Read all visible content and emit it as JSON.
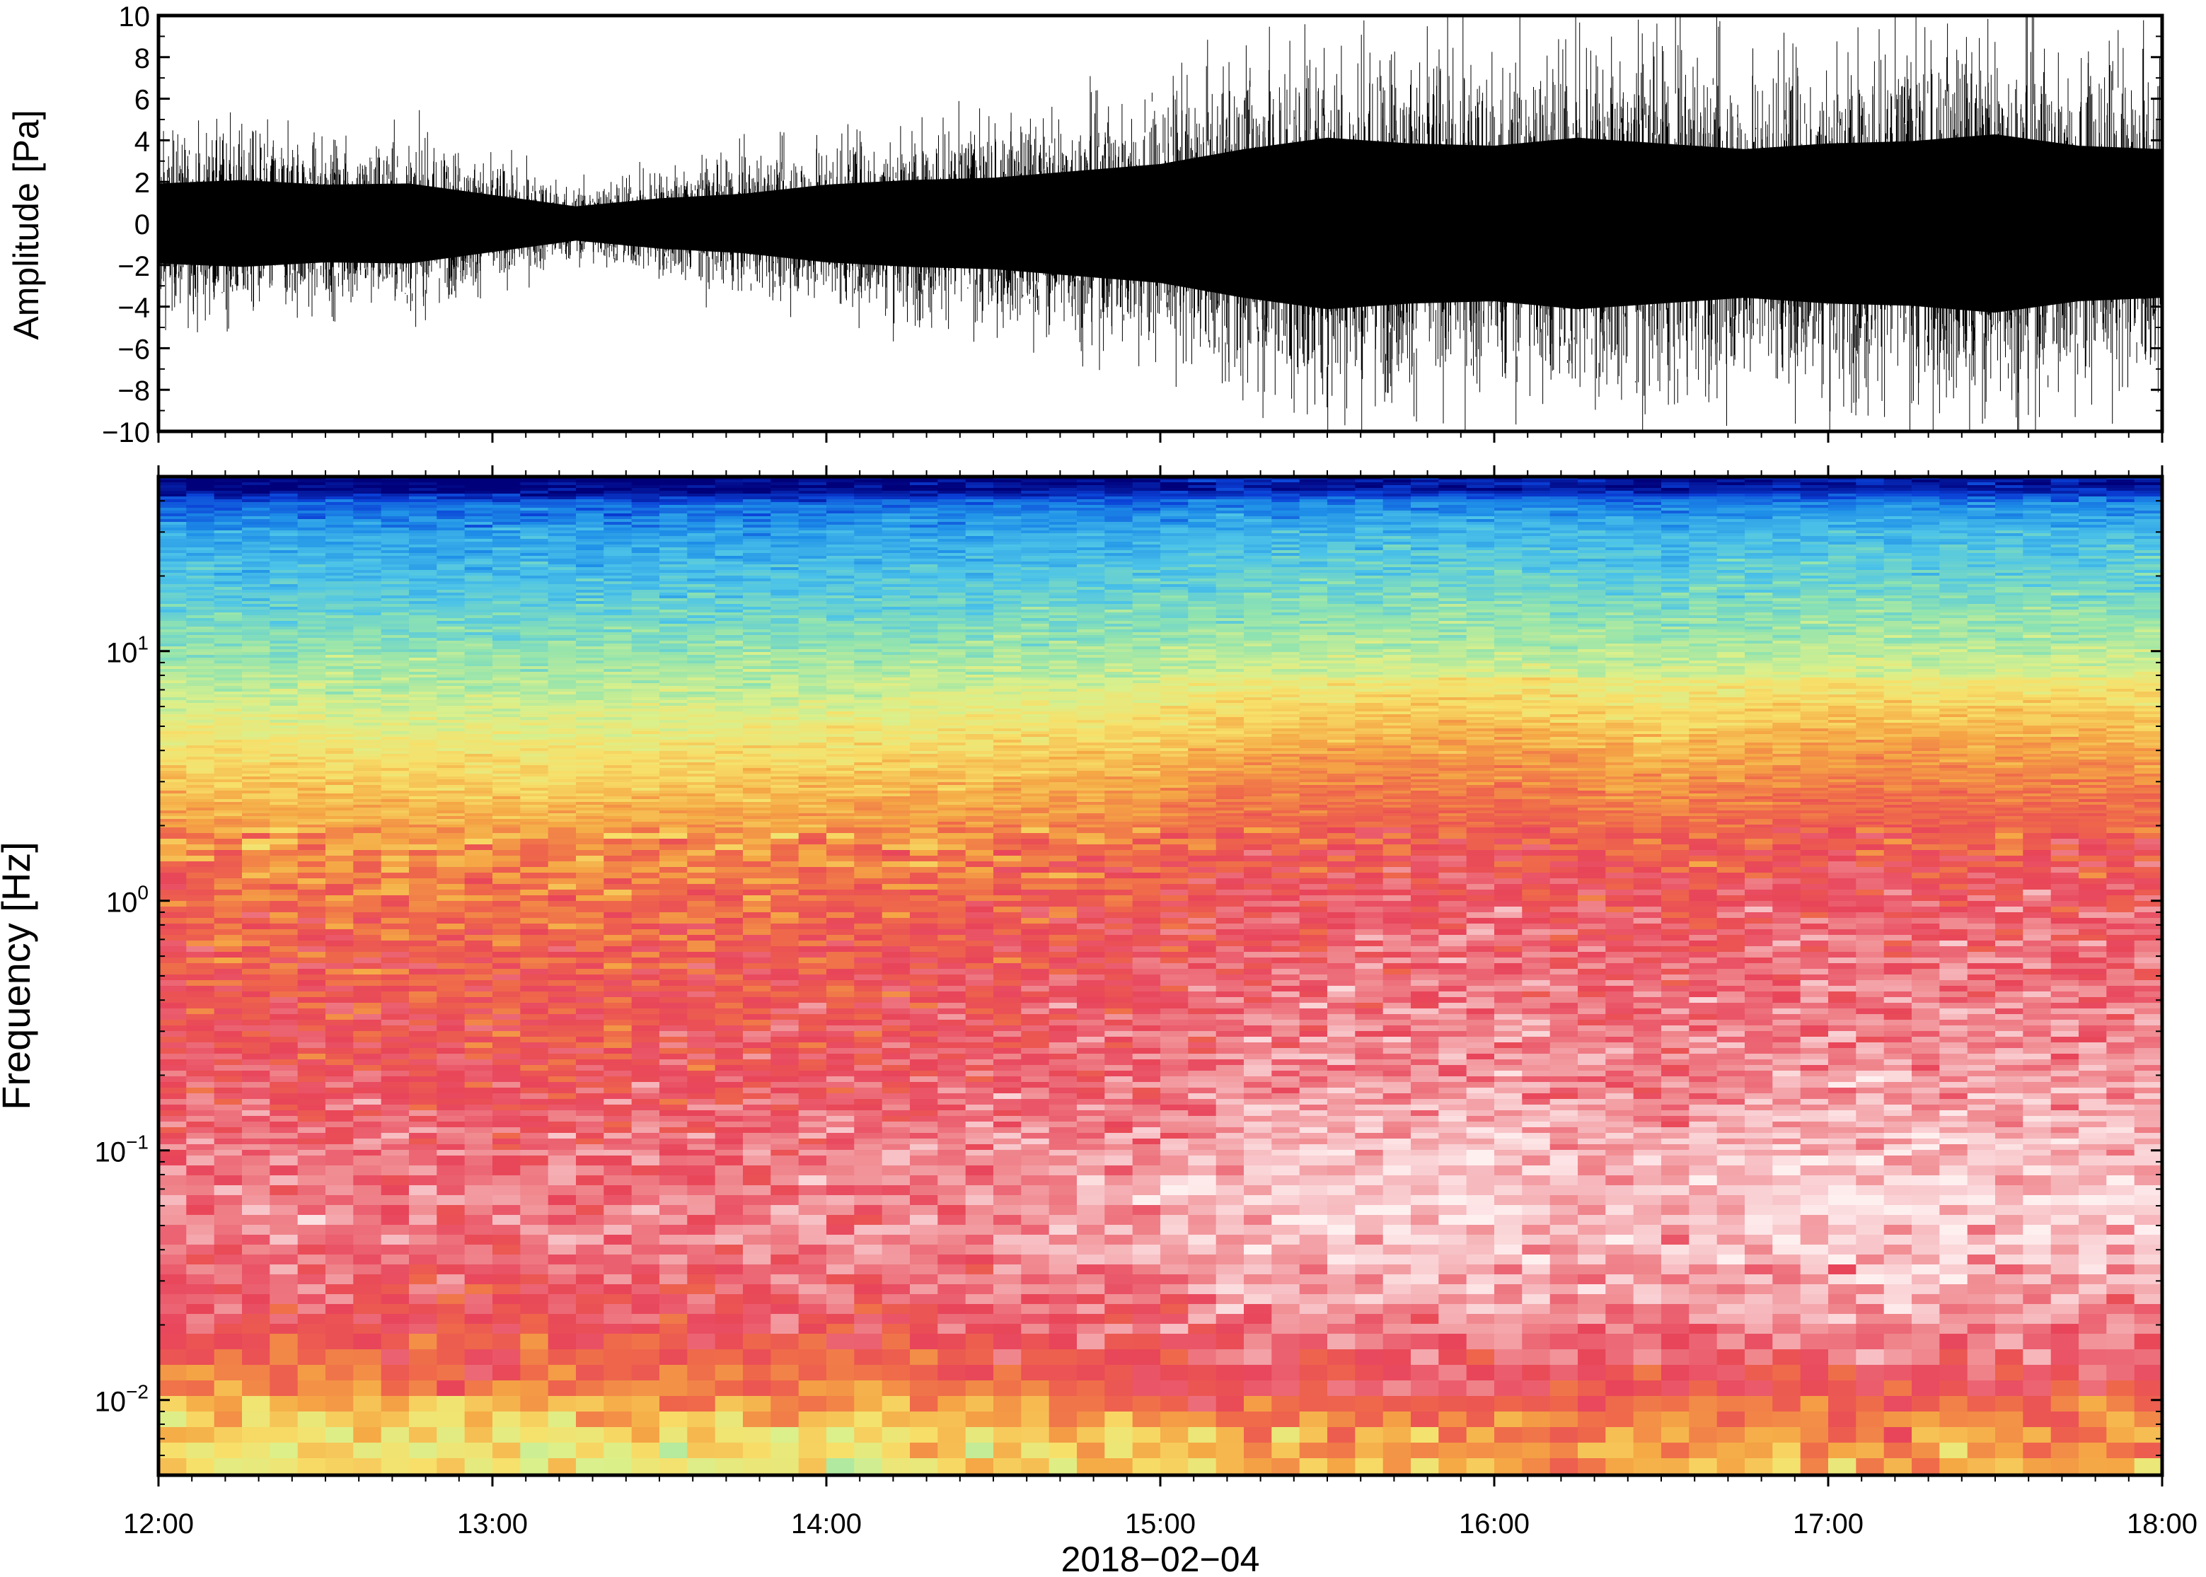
{
  "chart_data": [
    {
      "type": "line",
      "panel": "waveform",
      "ylabel": "Amplitude [Pa]",
      "ylim": [
        -10,
        10
      ],
      "yticks": [
        10,
        8,
        6,
        4,
        2,
        0,
        -2,
        -4,
        -6,
        -8,
        -10
      ],
      "ytick_labels": [
        "10",
        "8",
        "6",
        "4",
        "2",
        "0",
        "−2",
        "−4",
        "−6",
        "−8",
        "−10"
      ],
      "xlim": [
        "12:00",
        "18:00"
      ],
      "grid": false,
      "series": [
        {
          "color": "#000000",
          "x_hours": [
            12.0,
            12.25,
            12.5,
            12.75,
            13.0,
            13.25,
            13.5,
            13.75,
            14.0,
            14.25,
            14.5,
            14.75,
            15.0,
            15.25,
            15.5,
            15.75,
            16.0,
            16.25,
            16.5,
            16.75,
            17.0,
            17.25,
            17.5,
            17.75,
            18.0
          ],
          "envelope_pa": [
            3.5,
            3.8,
            3.4,
            3.5,
            2.5,
            1.5,
            2.2,
            2.6,
            3.4,
            3.8,
            4.0,
            4.6,
            5.2,
            6.5,
            7.5,
            7.0,
            6.8,
            7.5,
            7.0,
            6.5,
            7.0,
            7.2,
            7.8,
            6.8,
            6.5
          ]
        }
      ]
    },
    {
      "type": "heatmap",
      "panel": "spectrogram",
      "ylabel": "Frequency [Hz]",
      "yscale": "log",
      "ylim": [
        0.005,
        50
      ],
      "yticks": [
        0.01,
        0.1,
        1,
        10
      ],
      "ytick_labels": [
        {
          "base": "10",
          "exp": "−2"
        },
        {
          "base": "10",
          "exp": "−1"
        },
        {
          "base": "10",
          "exp": "0"
        },
        {
          "base": "10",
          "exp": "1"
        }
      ],
      "xlim": [
        "12:00",
        "18:00"
      ],
      "xticks": [
        "12:00",
        "13:00",
        "14:00",
        "15:00",
        "16:00",
        "17:00",
        "18:00"
      ],
      "xlabel": "2018−02−04",
      "colormap": [
        "#00007a",
        "#0a3fd6",
        "#1e8fe8",
        "#4cc3e8",
        "#8fe3b0",
        "#d9f08c",
        "#f7e06a",
        "#f5a845",
        "#ef6a4a",
        "#e8445a",
        "#f08a90",
        "#f8c8cc",
        "#fff0f0"
      ],
      "profile": [
        {
          "freq_hz": 45,
          "level": 0.0
        },
        {
          "freq_hz": 40,
          "level": 0.12
        },
        {
          "freq_hz": 30,
          "level": 0.2
        },
        {
          "freq_hz": 20,
          "level": 0.25
        },
        {
          "freq_hz": 12,
          "level": 0.32
        },
        {
          "freq_hz": 7,
          "level": 0.4
        },
        {
          "freq_hz": 4,
          "level": 0.5
        },
        {
          "freq_hz": 2,
          "level": 0.6
        },
        {
          "freq_hz": 1,
          "level": 0.68
        },
        {
          "freq_hz": 0.5,
          "level": 0.72
        },
        {
          "freq_hz": 0.2,
          "level": 0.76
        },
        {
          "freq_hz": 0.1,
          "level": 0.82
        },
        {
          "freq_hz": 0.05,
          "level": 0.84
        },
        {
          "freq_hz": 0.02,
          "level": 0.74
        },
        {
          "freq_hz": 0.012,
          "level": 0.64
        },
        {
          "freq_hz": 0.008,
          "level": 0.52
        },
        {
          "freq_hz": 0.005,
          "level": 0.46
        }
      ],
      "time_boost": [
        {
          "hour": 12.0,
          "boost": 0.0
        },
        {
          "hour": 13.0,
          "boost": -0.02
        },
        {
          "hour": 14.0,
          "boost": 0.0
        },
        {
          "hour": 15.0,
          "boost": 0.04
        },
        {
          "hour": 15.2,
          "boost": 0.08
        },
        {
          "hour": 16.0,
          "boost": 0.1
        },
        {
          "hour": 16.5,
          "boost": 0.06
        },
        {
          "hour": 17.0,
          "boost": 0.1
        },
        {
          "hour": 18.0,
          "boost": 0.09
        }
      ]
    }
  ]
}
